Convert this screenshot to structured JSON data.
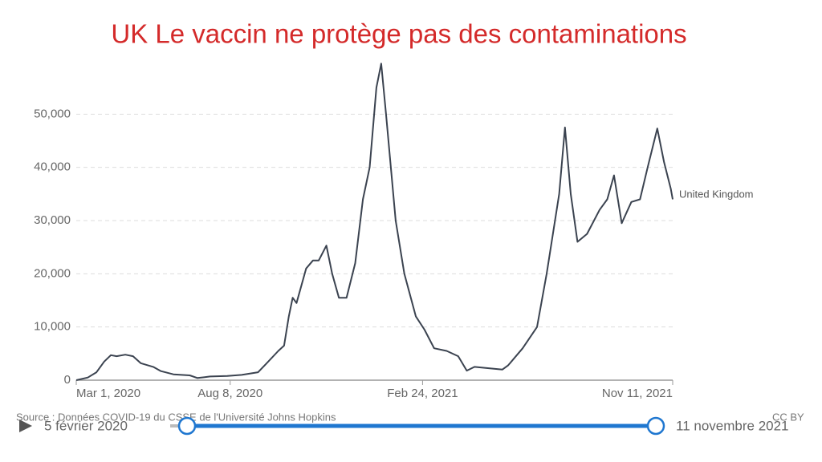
{
  "chart_data": {
    "type": "line",
    "title": "UK Le vaccin ne protège pas des contaminations",
    "x": [
      "2020-03-01",
      "2020-03-13",
      "2020-03-22",
      "2020-03-30",
      "2020-04-06",
      "2020-04-12",
      "2020-04-21",
      "2020-04-29",
      "2020-05-07",
      "2020-05-20",
      "2020-05-28",
      "2020-06-10",
      "2020-06-27",
      "2020-07-05",
      "2020-07-18",
      "2020-08-05",
      "2020-08-20",
      "2020-09-06",
      "2020-09-14",
      "2020-09-27",
      "2020-10-03",
      "2020-10-08",
      "2020-10-12",
      "2020-10-16",
      "2020-10-26",
      "2020-11-02",
      "2020-11-08",
      "2020-11-16",
      "2020-11-22",
      "2020-11-29",
      "2020-12-07",
      "2020-12-16",
      "2020-12-24",
      "2020-12-31",
      "2021-01-07",
      "2021-01-12",
      "2021-01-17",
      "2021-01-27",
      "2021-02-05",
      "2021-02-17",
      "2021-02-26",
      "2021-03-08",
      "2021-03-21",
      "2021-04-02",
      "2021-04-11",
      "2021-04-19",
      "2021-05-06",
      "2021-05-18",
      "2021-05-24",
      "2021-06-08",
      "2021-06-23",
      "2021-07-03",
      "2021-07-16",
      "2021-07-22",
      "2021-07-28",
      "2021-08-04",
      "2021-08-14",
      "2021-08-27",
      "2021-09-04",
      "2021-09-11",
      "2021-09-19",
      "2021-09-29",
      "2021-10-08",
      "2021-10-16",
      "2021-10-26",
      "2021-11-02",
      "2021-11-09",
      "2021-11-11"
    ],
    "series": [
      {
        "name": "United Kingdom",
        "color": "#3b4350",
        "values": [
          0,
          500,
          1500,
          3500,
          4700,
          4500,
          4800,
          4500,
          3200,
          2500,
          1700,
          1100,
          900,
          400,
          700,
          800,
          1000,
          1500,
          3000,
          5500,
          6500,
          12000,
          15500,
          14500,
          21000,
          22500,
          22500,
          25300,
          20000,
          15500,
          15500,
          22000,
          34000,
          40000,
          55000,
          59500,
          50000,
          30000,
          20000,
          12000,
          9500,
          6000,
          5500,
          4500,
          1800,
          2500,
          2200,
          2000,
          2800,
          6000,
          10000,
          20000,
          35000,
          47500,
          35000,
          26000,
          27500,
          32000,
          34000,
          38500,
          29500,
          33500,
          34000,
          40000,
          47300,
          41000,
          36000,
          34000
        ]
      }
    ],
    "xlim": [
      "2020-03-01",
      "2021-11-11"
    ],
    "xticks": [
      {
        "value": "2020-03-01",
        "label": "Mar 1, 2020"
      },
      {
        "value": "2020-08-08",
        "label": "Aug 8, 2020"
      },
      {
        "value": "2021-02-24",
        "label": "Feb 24, 2021"
      },
      {
        "value": "2021-11-11",
        "label": "Nov 11, 2021"
      }
    ],
    "ylim": [
      0,
      60000
    ],
    "yticks": [
      0,
      {
        "value": 10000,
        "label": "10,000"
      },
      {
        "value": 20000,
        "label": "20,000"
      },
      {
        "value": 30000,
        "label": "30,000"
      },
      {
        "value": 40000,
        "label": "40,000"
      },
      {
        "value": 50000,
        "label": "50,000"
      }
    ],
    "grid": true
  },
  "source": "Source : Données COVID-19 du CSSE de l'Université Johns Hopkins",
  "license": "CC BY",
  "timeline": {
    "start": "5 février 2020",
    "end": "11 novembre 2021"
  }
}
